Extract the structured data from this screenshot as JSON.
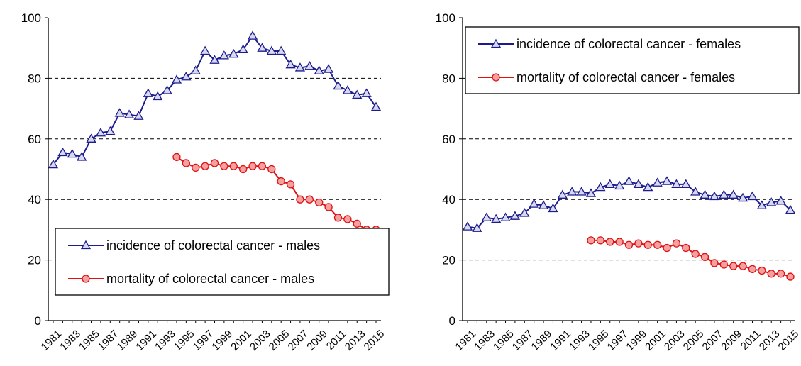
{
  "chart_data": [
    {
      "type": "line",
      "categories": [
        "1981",
        null,
        "1983",
        null,
        "1985",
        null,
        "1987",
        null,
        "1989",
        null,
        "1991",
        null,
        "1993",
        null,
        "1995",
        null,
        "1997",
        null,
        "1999",
        null,
        "2001",
        null,
        "2003",
        null,
        "2005",
        null,
        "2007",
        null,
        "2009",
        null,
        "2011",
        null,
        "2013",
        null,
        "2015"
      ],
      "series": [
        {
          "name": "incidence of colorectal cancer - males",
          "color": "#1c1c8c",
          "marker": "triangle",
          "values": [
            51.5,
            55.5,
            55,
            54,
            60,
            62,
            62.5,
            68.5,
            68,
            67.5,
            75,
            74,
            76,
            79.5,
            80.5,
            82.5,
            89,
            86,
            87.5,
            88,
            89.5,
            94,
            90,
            89,
            89,
            84.5,
            83.5,
            84,
            82.5,
            83,
            77.5,
            76,
            74.5,
            75,
            70.5
          ]
        },
        {
          "name": "mortality of colorectal cancer - males",
          "color": "#e01010",
          "marker": "circle",
          "values": [
            null,
            null,
            null,
            null,
            null,
            null,
            null,
            null,
            null,
            null,
            null,
            null,
            null,
            54,
            52,
            50.5,
            51,
            52,
            51,
            51,
            50,
            51,
            51,
            50,
            46,
            45,
            40,
            40,
            39,
            37.5,
            34,
            33.5,
            32,
            30,
            30
          ]
        }
      ],
      "ylim": [
        0,
        100
      ],
      "yticks": [
        0,
        20,
        40,
        60,
        80,
        100
      ],
      "grid": true,
      "legend": "lower right"
    },
    {
      "type": "line",
      "categories": [
        "1981",
        null,
        "1983",
        null,
        "1985",
        null,
        "1987",
        null,
        "1989",
        null,
        "1991",
        null,
        "1993",
        null,
        "1995",
        null,
        "1997",
        null,
        "1999",
        null,
        "2001",
        null,
        "2003",
        null,
        "2005",
        null,
        "2007",
        null,
        "2009",
        null,
        "2011",
        null,
        "2013",
        null,
        "2015"
      ],
      "series": [
        {
          "name": "incidence of colorectal cancer - females",
          "color": "#1c1c8c",
          "marker": "triangle",
          "values": [
            31,
            30.5,
            34,
            33.5,
            34,
            34.5,
            35.5,
            38.5,
            38,
            37,
            41.5,
            42.5,
            42.5,
            42,
            44,
            45,
            44.5,
            46,
            45,
            44,
            45.5,
            46,
            45,
            45,
            42.5,
            41.5,
            41,
            41.5,
            41.5,
            40.5,
            41,
            38,
            39,
            39.5,
            36.5
          ]
        },
        {
          "name": "mortality of colorectal cancer - females",
          "color": "#e01010",
          "marker": "circle",
          "values": [
            null,
            null,
            null,
            null,
            null,
            null,
            null,
            null,
            null,
            null,
            null,
            null,
            null,
            26.5,
            26.5,
            26,
            26,
            25,
            25.5,
            25,
            25,
            24,
            25.5,
            24,
            22,
            21,
            19,
            18.5,
            18,
            18,
            17,
            16.5,
            15.5,
            15.5,
            14.5
          ]
        }
      ],
      "ylim": [
        0,
        100
      ],
      "yticks": [
        0,
        20,
        40,
        60,
        80,
        100
      ],
      "grid": true,
      "legend": "upper left"
    }
  ]
}
